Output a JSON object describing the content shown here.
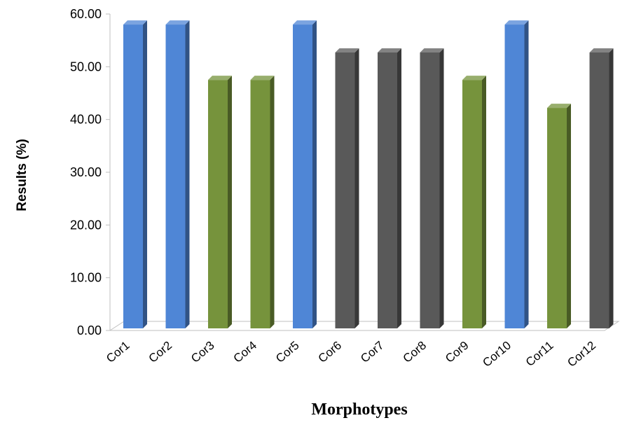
{
  "chart_data": {
    "type": "bar",
    "categories": [
      "Cor1",
      "Cor2",
      "Cor3",
      "Cor4",
      "Cor5",
      "Cor6",
      "Cor7",
      "Cor8",
      "Cor9",
      "Cor10",
      "Cor11",
      "Cor12"
    ],
    "values": [
      58.0,
      58.0,
      47.5,
      47.5,
      58.0,
      52.7,
      52.7,
      52.7,
      47.5,
      58.0,
      42.2,
      52.7
    ],
    "bar_colors": [
      "#4f86d6",
      "#4f86d6",
      "#76933c",
      "#76933c",
      "#4f86d6",
      "#595959",
      "#595959",
      "#595959",
      "#76933c",
      "#4f86d6",
      "#76933c",
      "#595959"
    ],
    "title": "",
    "xlabel": "Morphotypes",
    "ylabel": "Results (%)",
    "ylim": [
      0,
      60
    ],
    "y_ticks": [
      "0.00",
      "10.00",
      "20.00",
      "30.00",
      "40.00",
      "50.00",
      "60.00"
    ],
    "grid": false,
    "legend": "none"
  }
}
